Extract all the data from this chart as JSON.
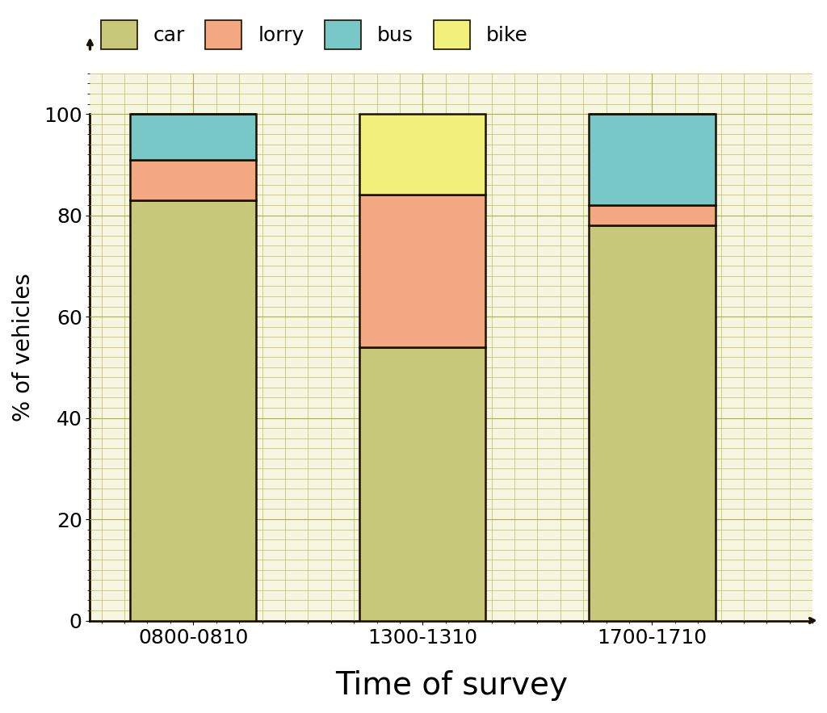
{
  "categories": [
    "0800-0810",
    "1300-1310",
    "1700-1710"
  ],
  "car": [
    83,
    54,
    78
  ],
  "lorry": [
    8,
    30,
    4
  ],
  "bus": [
    9,
    0,
    18
  ],
  "bike": [
    0,
    16,
    0
  ],
  "colors": {
    "car": "#c8c87a",
    "lorry": "#f4a882",
    "bus": "#78c8c8",
    "bike": "#f0f07a"
  },
  "ylabel": "% of vehicles",
  "xlabel": "Time of survey",
  "yticks": [
    0,
    20,
    40,
    60,
    80,
    100
  ],
  "grid_color": "#b0b040",
  "bar_edge_color": "#1a1000",
  "bar_width": 0.55,
  "legend_labels": [
    "car",
    "lorry",
    "bus",
    "bike"
  ],
  "ylabel_fontsize": 20,
  "xlabel_fontsize": 28,
  "tick_fontsize": 18,
  "legend_fontsize": 18,
  "plot_bg": "#f5f5e0"
}
